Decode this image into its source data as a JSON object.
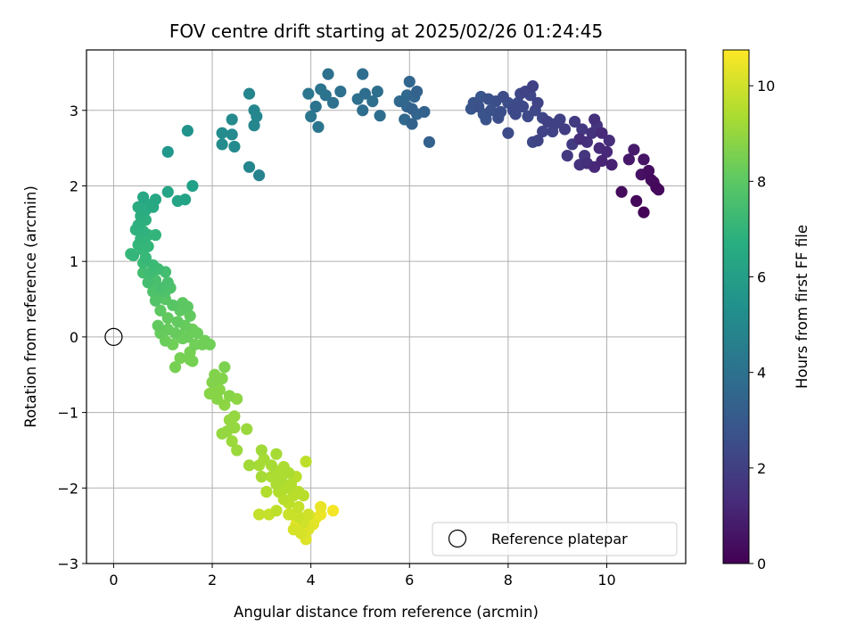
{
  "chart_data": {
    "type": "scatter",
    "title": "FOV centre drift starting at 2025/02/26 01:24:45",
    "xlabel": "Angular distance from reference (arcmin)",
    "ylabel": "Rotation from reference (arcmin)",
    "xlim": [
      -0.55,
      11.6
    ],
    "ylim": [
      -3.0,
      3.8
    ],
    "xticks": [
      0,
      2,
      4,
      6,
      8,
      10
    ],
    "yticks": [
      -3,
      -2,
      -1,
      0,
      1,
      2,
      3
    ],
    "grid": true,
    "colormap": "viridis",
    "colorbar": {
      "label": "Hours from first FF file",
      "range": [
        0,
        10.75
      ],
      "ticks": [
        0,
        2,
        4,
        6,
        8,
        10
      ]
    },
    "legend": {
      "placement": "bottom-right",
      "entries": [
        {
          "label": "Reference platepar",
          "marker": "open-circle",
          "color": "#000000"
        }
      ]
    },
    "reference_point": {
      "x": 0,
      "y": 0
    },
    "points": [
      [
        10.75,
        1.65,
        0.1
      ],
      [
        10.6,
        1.8,
        0.2
      ],
      [
        10.3,
        1.92,
        0.3
      ],
      [
        11.05,
        1.95,
        0.2
      ],
      [
        10.95,
        2.05,
        0.3
      ],
      [
        10.85,
        2.2,
        0.4
      ],
      [
        10.7,
        2.15,
        0.5
      ],
      [
        11.0,
        1.98,
        0.25
      ],
      [
        10.75,
        2.35,
        0.6
      ],
      [
        10.45,
        2.35,
        0.7
      ],
      [
        10.55,
        2.48,
        0.8
      ],
      [
        10.9,
        2.08,
        0.35
      ],
      [
        10.1,
        2.28,
        1.0
      ],
      [
        9.9,
        2.33,
        1.1
      ],
      [
        10.0,
        2.45,
        1.2
      ],
      [
        9.85,
        2.5,
        1.3
      ],
      [
        10.05,
        2.6,
        1.4
      ],
      [
        9.6,
        2.3,
        1.5
      ],
      [
        9.75,
        2.25,
        1.2
      ],
      [
        9.45,
        2.28,
        1.6
      ],
      [
        9.55,
        2.4,
        1.7
      ],
      [
        9.2,
        2.4,
        1.8
      ],
      [
        9.3,
        2.55,
        1.9
      ],
      [
        9.45,
        2.62,
        1.4
      ],
      [
        9.6,
        2.58,
        1.5
      ],
      [
        9.7,
        2.7,
        1.6
      ],
      [
        9.5,
        2.75,
        1.8
      ],
      [
        9.8,
        2.8,
        1.7
      ],
      [
        9.75,
        2.88,
        1.5
      ],
      [
        9.9,
        2.7,
        1.3
      ],
      [
        9.35,
        2.85,
        1.9
      ],
      [
        9.15,
        2.75,
        2.0
      ],
      [
        9.05,
        2.88,
        2.1
      ],
      [
        8.9,
        2.72,
        2.2
      ],
      [
        8.8,
        2.85,
        2.1
      ],
      [
        8.6,
        2.6,
        2.2
      ],
      [
        8.5,
        2.58,
        2.3
      ],
      [
        8.7,
        2.9,
        2.3
      ],
      [
        8.4,
        2.92,
        2.4
      ],
      [
        8.55,
        3.0,
        2.3
      ],
      [
        8.3,
        3.05,
        2.4
      ],
      [
        8.6,
        3.1,
        2.2
      ],
      [
        8.45,
        3.2,
        2.3
      ],
      [
        8.2,
        3.1,
        2.5
      ],
      [
        8.1,
        3.0,
        2.4
      ],
      [
        8.35,
        3.25,
        2.2
      ],
      [
        8.5,
        3.32,
        2.1
      ],
      [
        8.25,
        3.22,
        2.3
      ],
      [
        8.0,
        3.1,
        2.6
      ],
      [
        7.9,
        3.18,
        2.5
      ],
      [
        7.75,
        3.12,
        2.6
      ],
      [
        7.65,
        3.0,
        2.7
      ],
      [
        7.5,
        2.95,
        2.8
      ],
      [
        7.4,
        3.05,
        2.7
      ],
      [
        7.3,
        3.1,
        2.8
      ],
      [
        7.45,
        3.18,
        2.9
      ],
      [
        7.6,
        3.15,
        2.7
      ],
      [
        7.25,
        3.02,
        2.9
      ],
      [
        7.8,
        2.9,
        2.6
      ],
      [
        8.0,
        2.7,
        2.5
      ],
      [
        7.55,
        2.88,
        2.8
      ],
      [
        7.85,
        2.98,
        2.6
      ],
      [
        8.15,
        2.95,
        2.4
      ],
      [
        8.7,
        2.72,
        2.2
      ],
      [
        8.95,
        2.82,
        2.1
      ],
      [
        6.4,
        2.58,
        3.3
      ],
      [
        6.3,
        2.98,
        3.4
      ],
      [
        6.15,
        2.95,
        3.5
      ],
      [
        6.05,
        2.82,
        3.4
      ],
      [
        6.05,
        3.02,
        3.4
      ],
      [
        5.9,
        2.88,
        3.6
      ],
      [
        5.95,
        3.05,
        3.5
      ],
      [
        5.8,
        3.12,
        3.6
      ],
      [
        6.1,
        3.18,
        3.5
      ],
      [
        5.95,
        3.2,
        3.6
      ],
      [
        6.0,
        3.38,
        3.5
      ],
      [
        6.15,
        3.25,
        3.4
      ],
      [
        5.4,
        2.93,
        3.8
      ],
      [
        5.05,
        3.0,
        3.8
      ],
      [
        4.95,
        3.15,
        3.9
      ],
      [
        5.1,
        3.22,
        3.8
      ],
      [
        5.25,
        3.12,
        3.9
      ],
      [
        5.35,
        3.25,
        3.9
      ],
      [
        5.05,
        3.48,
        3.8
      ],
      [
        4.6,
        3.25,
        4.0
      ],
      [
        4.45,
        3.1,
        4.0
      ],
      [
        4.3,
        3.2,
        4.1
      ],
      [
        4.35,
        3.48,
        4.0
      ],
      [
        4.1,
        3.05,
        4.1
      ],
      [
        4.15,
        2.78,
        4.2
      ],
      [
        4.0,
        2.92,
        4.2
      ],
      [
        3.95,
        3.22,
        4.2
      ],
      [
        4.2,
        3.28,
        4.1
      ],
      [
        2.95,
        2.14,
        4.8
      ],
      [
        2.75,
        2.25,
        4.9
      ],
      [
        2.85,
        2.8,
        5.0
      ],
      [
        2.9,
        2.92,
        5.0
      ],
      [
        2.85,
        3.0,
        5.0
      ],
      [
        2.75,
        3.22,
        4.9
      ],
      [
        2.45,
        2.52,
        5.1
      ],
      [
        2.4,
        2.68,
        5.1
      ],
      [
        2.4,
        2.88,
        5.1
      ],
      [
        2.2,
        2.55,
        5.2
      ],
      [
        2.2,
        2.7,
        5.2
      ],
      [
        1.5,
        2.73,
        5.5
      ],
      [
        1.1,
        2.45,
        5.7
      ],
      [
        1.6,
        2.0,
        6.1
      ],
      [
        1.45,
        1.82,
        6.2
      ],
      [
        1.3,
        1.8,
        6.3
      ],
      [
        1.1,
        1.92,
        6.3
      ],
      [
        0.85,
        1.82,
        6.4
      ],
      [
        0.8,
        1.72,
        6.5
      ],
      [
        0.6,
        1.85,
        6.4
      ],
      [
        0.7,
        1.75,
        6.6
      ],
      [
        0.5,
        1.72,
        6.6
      ],
      [
        0.55,
        1.6,
        6.7
      ],
      [
        0.65,
        1.55,
        6.8
      ],
      [
        0.5,
        1.48,
        6.8
      ],
      [
        0.6,
        1.4,
        6.9
      ],
      [
        0.45,
        1.42,
        6.9
      ],
      [
        0.7,
        1.35,
        7.0
      ],
      [
        0.85,
        1.35,
        7.0
      ],
      [
        0.55,
        1.3,
        7.0
      ],
      [
        0.7,
        1.2,
        7.1
      ],
      [
        0.6,
        1.15,
        7.2
      ],
      [
        0.65,
        1.05,
        7.2
      ],
      [
        0.4,
        1.08,
        7.1
      ],
      [
        0.6,
        0.98,
        7.3
      ],
      [
        0.35,
        1.1,
        7.2
      ],
      [
        0.8,
        0.95,
        7.3
      ],
      [
        0.9,
        0.9,
        7.4
      ],
      [
        0.75,
        0.85,
        7.4
      ],
      [
        0.6,
        0.85,
        7.5
      ],
      [
        0.7,
        0.72,
        7.5
      ],
      [
        1.05,
        0.86,
        7.5
      ],
      [
        0.85,
        0.75,
        7.6
      ],
      [
        0.95,
        0.65,
        7.6
      ],
      [
        1.1,
        0.72,
        7.6
      ],
      [
        0.8,
        0.6,
        7.7
      ],
      [
        1.05,
        0.6,
        7.7
      ],
      [
        1.15,
        0.65,
        7.7
      ],
      [
        0.9,
        0.55,
        7.8
      ],
      [
        0.85,
        0.48,
        7.8
      ],
      [
        1.05,
        0.5,
        7.9
      ],
      [
        1.2,
        0.42,
        7.9
      ],
      [
        1.4,
        0.45,
        8.0
      ],
      [
        1.35,
        0.35,
        8.0
      ],
      [
        1.5,
        0.4,
        8.0
      ],
      [
        0.95,
        0.35,
        8.0
      ],
      [
        1.1,
        0.25,
        8.1
      ],
      [
        1.3,
        0.2,
        8.1
      ],
      [
        1.55,
        0.28,
        8.1
      ],
      [
        0.9,
        0.15,
        8.1
      ],
      [
        1.1,
        0.1,
        8.2
      ],
      [
        0.95,
        0.05,
        8.2
      ],
      [
        1.25,
        0.05,
        8.2
      ],
      [
        1.45,
        0.15,
        8.2
      ],
      [
        1.6,
        0.1,
        8.3
      ],
      [
        1.7,
        0.05,
        8.3
      ],
      [
        1.5,
        0.0,
        8.3
      ],
      [
        1.35,
        0.02,
        8.3
      ],
      [
        1.05,
        -0.05,
        8.3
      ],
      [
        1.2,
        -0.1,
        8.4
      ],
      [
        1.4,
        -0.02,
        8.3
      ],
      [
        1.85,
        -0.05,
        8.4
      ],
      [
        1.95,
        -0.1,
        8.4
      ],
      [
        1.65,
        -0.1,
        8.4
      ],
      [
        1.55,
        -0.2,
        8.5
      ],
      [
        1.35,
        -0.28,
        8.5
      ],
      [
        1.25,
        -0.4,
        8.5
      ],
      [
        1.55,
        -0.3,
        8.5
      ],
      [
        1.6,
        -0.32,
        8.5
      ],
      [
        2.05,
        -0.5,
        8.7
      ],
      [
        2.2,
        -0.55,
        8.7
      ],
      [
        2.0,
        -0.6,
        8.7
      ],
      [
        2.25,
        -0.4,
        8.6
      ],
      [
        2.15,
        -0.7,
        8.8
      ],
      [
        1.95,
        -0.75,
        8.8
      ],
      [
        2.1,
        -0.82,
        8.8
      ],
      [
        2.35,
        -0.78,
        8.8
      ],
      [
        2.5,
        -0.82,
        8.9
      ],
      [
        2.25,
        -0.9,
        8.9
      ],
      [
        2.45,
        -1.05,
        9.0
      ],
      [
        2.35,
        -1.1,
        9.0
      ],
      [
        2.3,
        -1.25,
        9.0
      ],
      [
        2.45,
        -1.2,
        9.0
      ],
      [
        2.2,
        -1.28,
        9.0
      ],
      [
        2.4,
        -1.38,
        9.1
      ],
      [
        2.5,
        -1.5,
        9.1
      ],
      [
        2.7,
        -1.22,
        9.1
      ],
      [
        2.75,
        -1.7,
        9.2
      ],
      [
        3.0,
        -1.5,
        9.2
      ],
      [
        2.95,
        -1.7,
        9.3
      ],
      [
        3.05,
        -1.62,
        9.3
      ],
      [
        3.0,
        -1.85,
        9.3
      ],
      [
        3.2,
        -1.7,
        9.3
      ],
      [
        3.3,
        -1.55,
        9.3
      ],
      [
        3.35,
        -1.78,
        9.4
      ],
      [
        3.45,
        -1.72,
        9.4
      ],
      [
        3.2,
        -1.85,
        9.4
      ],
      [
        3.3,
        -1.95,
        9.4
      ],
      [
        3.4,
        -1.9,
        9.4
      ],
      [
        3.55,
        -1.8,
        9.4
      ],
      [
        3.1,
        -2.05,
        9.5
      ],
      [
        3.35,
        -2.05,
        9.5
      ],
      [
        3.5,
        -2.0,
        9.5
      ],
      [
        3.6,
        -1.95,
        9.5
      ],
      [
        3.65,
        -2.1,
        9.6
      ],
      [
        3.45,
        -2.15,
        9.6
      ],
      [
        3.75,
        -2.05,
        9.6
      ],
      [
        3.85,
        -2.1,
        9.6
      ],
      [
        3.55,
        -2.2,
        9.7
      ],
      [
        3.3,
        -2.3,
        9.7
      ],
      [
        3.7,
        -1.85,
        9.6
      ],
      [
        3.75,
        -2.25,
        9.8
      ],
      [
        3.9,
        -1.65,
        9.7
      ],
      [
        3.15,
        -2.35,
        9.8
      ],
      [
        2.95,
        -2.35,
        9.8
      ],
      [
        3.6,
        -2.35,
        9.9
      ],
      [
        3.75,
        -2.38,
        9.9
      ],
      [
        3.85,
        -2.45,
        10.0
      ],
      [
        3.95,
        -2.35,
        10.0
      ],
      [
        3.65,
        -2.55,
        10.1
      ],
      [
        3.8,
        -2.6,
        10.1
      ],
      [
        3.9,
        -2.68,
        10.2
      ],
      [
        3.95,
        -2.55,
        10.2
      ],
      [
        4.05,
        -2.48,
        10.3
      ],
      [
        4.1,
        -2.4,
        10.4
      ],
      [
        4.2,
        -2.35,
        10.5
      ],
      [
        4.2,
        -2.25,
        10.4
      ],
      [
        4.45,
        -2.3,
        10.6
      ],
      [
        4.0,
        -2.42,
        10.5
      ],
      [
        3.7,
        -2.48,
        10.3
      ],
      [
        3.55,
        -2.35,
        9.9
      ],
      [
        3.4,
        -2.0,
        9.5
      ],
      [
        2.1,
        -0.65,
        8.8
      ],
      [
        1.8,
        -0.1,
        8.4
      ],
      [
        0.5,
        1.22,
        7.1
      ],
      [
        0.65,
        1.68,
        6.6
      ]
    ]
  }
}
